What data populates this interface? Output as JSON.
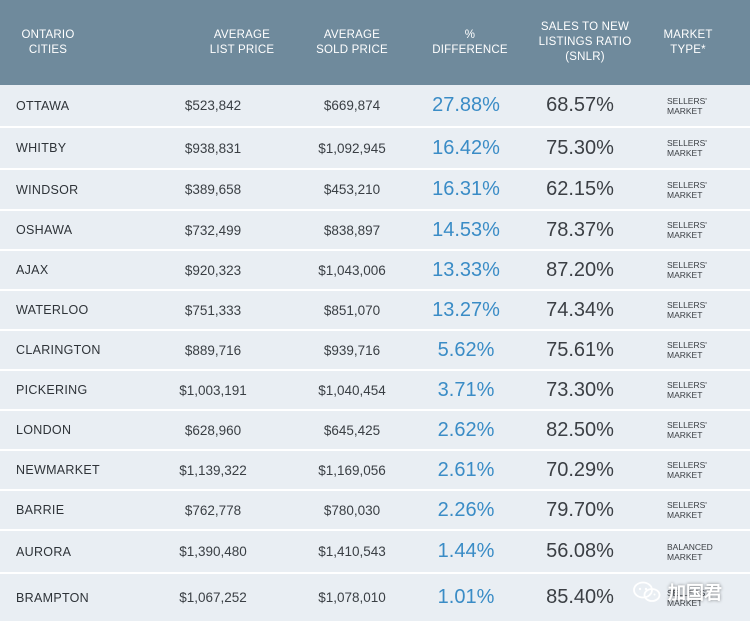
{
  "headers": {
    "city": "ONTARIO\nCITIES",
    "list_price": "AVERAGE\nLIST PRICE",
    "sold_price": "AVERAGE\nSOLD PRICE",
    "pct_diff": "%\nDIFFERENCE",
    "snlr": "SALES TO NEW\nLISTINGS RATIO\n(SNLR)",
    "market": "MARKET\nTYPE*"
  },
  "rows": [
    {
      "city": "OTTAWA",
      "list_price": "$523,842",
      "sold_price": "$669,874",
      "pct_diff": "27.88%",
      "snlr": "68.57%",
      "market": "SELLERS'\nMARKET"
    },
    {
      "city": "WHITBY",
      "list_price": "$938,831",
      "sold_price": "$1,092,945",
      "pct_diff": "16.42%",
      "snlr": "75.30%",
      "market": "SELLERS'\nMARKET"
    },
    {
      "city": "WINDSOR",
      "list_price": "$389,658",
      "sold_price": "$453,210",
      "pct_diff": "16.31%",
      "snlr": "62.15%",
      "market": "SELLERS'\nMARKET"
    },
    {
      "city": "OSHAWA",
      "list_price": "$732,499",
      "sold_price": "$838,897",
      "pct_diff": "14.53%",
      "snlr": "78.37%",
      "market": "SELLERS'\nMARKET"
    },
    {
      "city": "AJAX",
      "list_price": "$920,323",
      "sold_price": "$1,043,006",
      "pct_diff": "13.33%",
      "snlr": "87.20%",
      "market": "SELLERS'\nMARKET"
    },
    {
      "city": "WATERLOO",
      "list_price": "$751,333",
      "sold_price": "$851,070",
      "pct_diff": "13.27%",
      "snlr": "74.34%",
      "market": "SELLERS'\nMARKET"
    },
    {
      "city": "CLARINGTON",
      "list_price": "$889,716",
      "sold_price": "$939,716",
      "pct_diff": "5.62%",
      "snlr": "75.61%",
      "market": "SELLERS'\nMARKET"
    },
    {
      "city": "PICKERING",
      "list_price": "$1,003,191",
      "sold_price": "$1,040,454",
      "pct_diff": "3.71%",
      "snlr": "73.30%",
      "market": "SELLERS'\nMARKET"
    },
    {
      "city": "LONDON",
      "list_price": "$628,960",
      "sold_price": "$645,425",
      "pct_diff": "2.62%",
      "snlr": "82.50%",
      "market": "SELLERS'\nMARKET"
    },
    {
      "city": "NEWMARKET",
      "list_price": "$1,139,322",
      "sold_price": "$1,169,056",
      "pct_diff": "2.61%",
      "snlr": "70.29%",
      "market": "SELLERS'\nMARKET"
    },
    {
      "city": "BARRIE",
      "list_price": "$762,778",
      "sold_price": "$780,030",
      "pct_diff": "2.26%",
      "snlr": "79.70%",
      "market": "SELLERS'\nMARKET"
    },
    {
      "city": "AURORA",
      "list_price": "$1,390,480",
      "sold_price": "$1,410,543",
      "pct_diff": "1.44%",
      "snlr": "56.08%",
      "market": "BALANCED\nMARKET"
    },
    {
      "city": "BRAMPTON",
      "list_price": "$1,067,252",
      "sold_price": "$1,078,010",
      "pct_diff": "1.01%",
      "snlr": "85.40%",
      "market": "SELLERS'\nMARKET"
    }
  ],
  "watermark": {
    "text": "加国君",
    "icon": "wechat-icon"
  },
  "colors": {
    "header_bg": "#6f8a9c",
    "row_bg": "#e9eef3",
    "pct_blue": "#3a8cc6"
  }
}
